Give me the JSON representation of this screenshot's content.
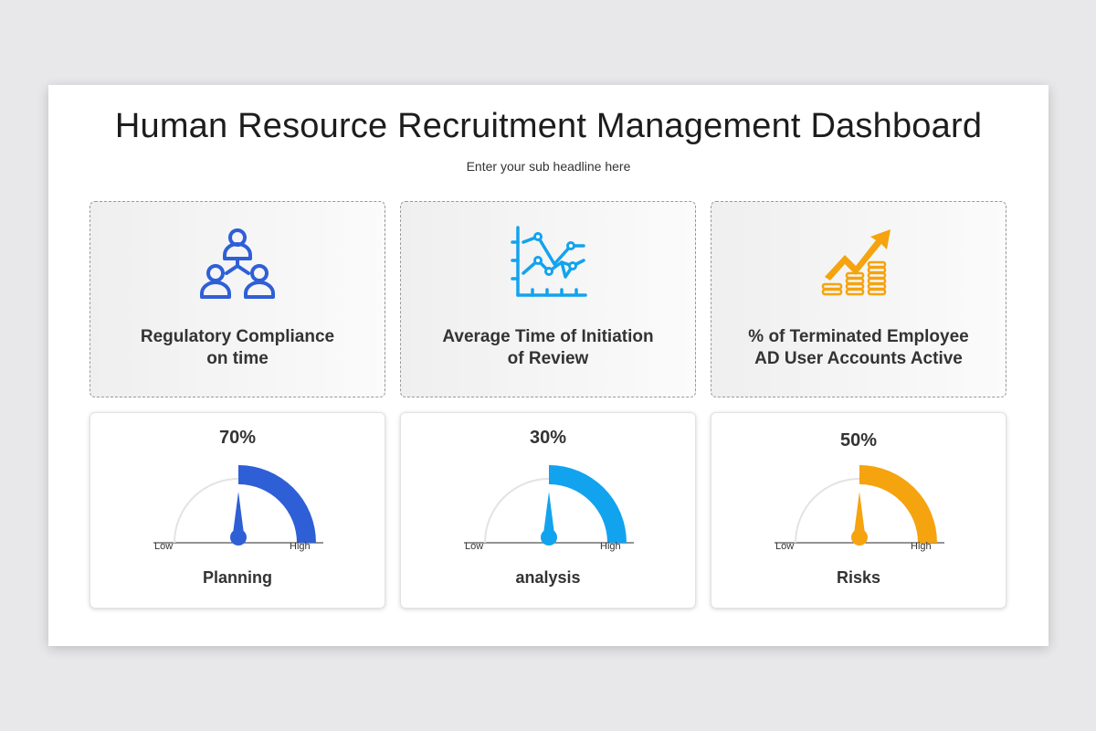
{
  "header": {
    "title": "Human Resource Recruitment Management Dashboard",
    "subtitle": "Enter your sub headline here"
  },
  "cards": [
    {
      "label": "Regulatory Compliance\non time",
      "icon": "team-hierarchy-icon",
      "color": "#2f5fd6"
    },
    {
      "label": "Average Time of Initiation\nof Review",
      "icon": "line-chart-icon",
      "color": "#12a3ee"
    },
    {
      "label": "% of Terminated Employee\nAD User Accounts Active",
      "icon": "growth-coins-icon",
      "color": "#f5a30f"
    }
  ],
  "gauges": [
    {
      "value_label": "70%",
      "value": 70,
      "name": "Planning",
      "low": "Low",
      "high": "High",
      "color": "#2f5fd6"
    },
    {
      "value_label": "30%",
      "value": 30,
      "name": "analysis",
      "low": "Low",
      "high": "High",
      "color": "#12a3ee"
    },
    {
      "value_label": "50%",
      "value": 50,
      "name": "Risks",
      "low": "Low",
      "high": "High",
      "color": "#f5a30f"
    }
  ]
}
